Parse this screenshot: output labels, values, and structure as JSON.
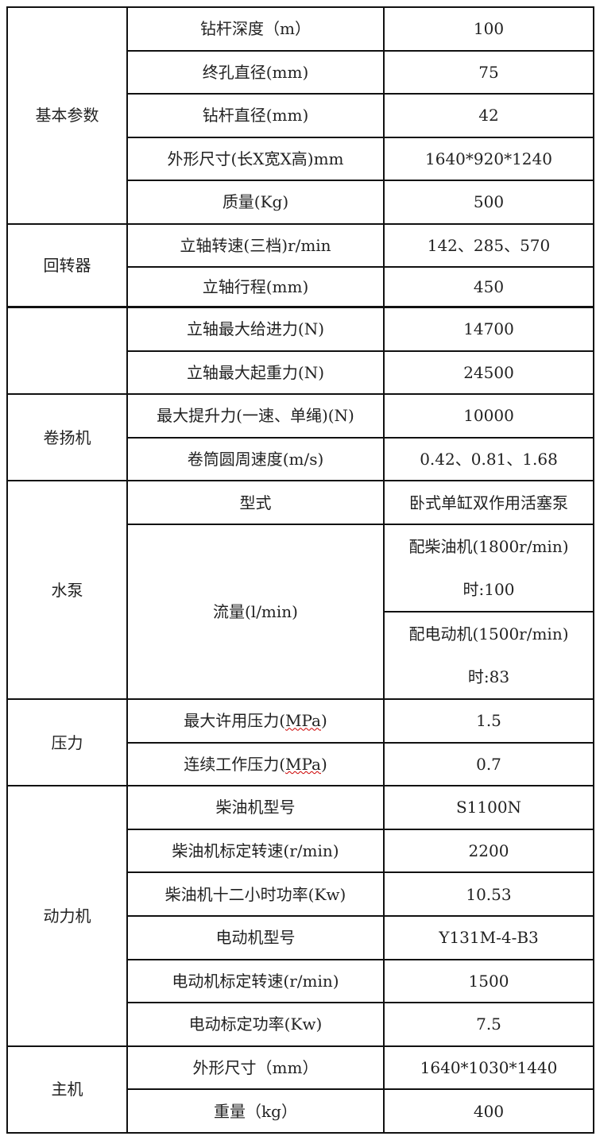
{
  "table1": {
    "groups": [
      {
        "label": "基本参数",
        "rows": [
          {
            "param": "钻杆深度（m）",
            "value": "100"
          },
          {
            "param": "终孔直径(mm)",
            "value": "75"
          },
          {
            "param": "钻杆直径(mm)",
            "value": "42"
          },
          {
            "param": "外形尺寸(长X宽X高)mm",
            "value": "1640*920*1240"
          },
          {
            "param": "质量(Kg)",
            "value": "500"
          }
        ]
      },
      {
        "label": "回转器",
        "rows": [
          {
            "param": "立轴转速(三档)r/min",
            "value": "142、285、570"
          },
          {
            "param": "立轴行程(mm)",
            "value": "450"
          }
        ]
      }
    ]
  },
  "table2": {
    "groups": [
      {
        "label": "",
        "rows": [
          {
            "param": "立轴最大给进力(N)",
            "value": "14700"
          },
          {
            "param": "立轴最大起重力(N)",
            "value": "24500"
          }
        ]
      },
      {
        "label": "卷扬机",
        "rows": [
          {
            "param": "最大提升力(一速、单绳)(N)",
            "value": "10000"
          },
          {
            "param": "卷筒圆周速度(m/s)",
            "value": "0.42、0.81、1.68"
          }
        ]
      },
      {
        "label": "水泵",
        "rows": [
          {
            "param": "型式",
            "value": "卧式单缸双作用活塞泵"
          },
          {
            "param": "流量(l/min)",
            "values": [
              {
                "line1": "配柴油机(1800r/min)",
                "line2": "时:100"
              },
              {
                "line1": "配电动机(1500r/min)",
                "line2": "时:83"
              }
            ]
          }
        ]
      },
      {
        "label": "压力",
        "rows": [
          {
            "param_prefix": "最大许用压力(",
            "param_unit": "MPa",
            "param_suffix": ")",
            "value": "1.5"
          },
          {
            "param_prefix": "连续工作压力(",
            "param_unit": "MPa",
            "param_suffix": ")",
            "value": "0.7"
          }
        ]
      },
      {
        "label": "动力机",
        "rows": [
          {
            "param": "柴油机型号",
            "value": "S1100N"
          },
          {
            "param": "柴油机标定转速(r/min)",
            "value": "2200"
          },
          {
            "param": "柴油机十二小时功率(Kw)",
            "value": "10.53"
          },
          {
            "param": "电动机型号",
            "value": "Y131M-4-B3"
          },
          {
            "param": "电动机标定转速(r/min)",
            "value": "1500"
          },
          {
            "param": "电动标定功率(Kw)",
            "value": "7.5"
          }
        ]
      },
      {
        "label": "主机",
        "rows": [
          {
            "param": "外形尺寸（mm）",
            "value": "1640*1030*1440"
          },
          {
            "param": "重量（kg）",
            "value": "400"
          }
        ]
      }
    ]
  }
}
